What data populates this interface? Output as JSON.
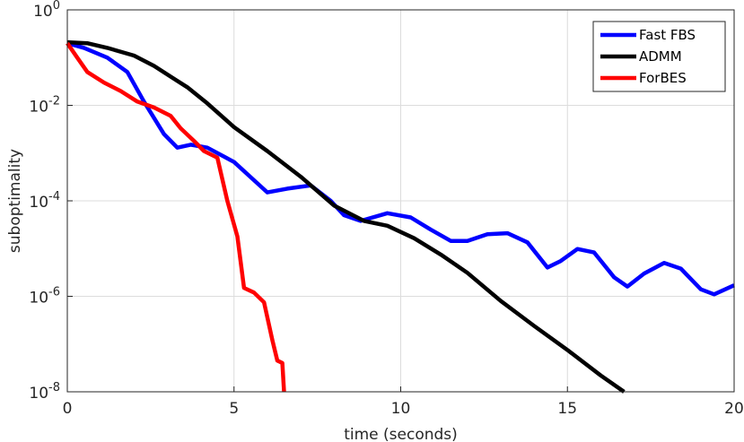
{
  "chart_data": {
    "type": "line",
    "xlabel": "time (seconds)",
    "ylabel": "suboptimality",
    "xlim": [
      0,
      20
    ],
    "ylim": [
      1e-08,
      1
    ],
    "yscale": "log",
    "grid": true,
    "legend_position": "top-right",
    "x_ticks": [
      "0",
      "5",
      "10",
      "15",
      "20"
    ],
    "y_ticks": [
      {
        "base": "10",
        "exp": "-8"
      },
      {
        "base": "10",
        "exp": "-6"
      },
      {
        "base": "10",
        "exp": "-4"
      },
      {
        "base": "10",
        "exp": "-2"
      },
      {
        "base": "10",
        "exp": "0"
      }
    ],
    "series": [
      {
        "name": "Fast FBS",
        "color": "#0000ff",
        "points": [
          [
            0,
            0.2
          ],
          [
            0.5,
            0.16
          ],
          [
            1.2,
            0.1
          ],
          [
            1.8,
            0.05
          ],
          [
            2.3,
            0.012
          ],
          [
            2.9,
            0.0025
          ],
          [
            3.3,
            0.0013
          ],
          [
            3.7,
            0.0015
          ],
          [
            4.2,
            0.0013
          ],
          [
            5.0,
            0.00065
          ],
          [
            5.6,
            0.00027
          ],
          [
            6.0,
            0.00015
          ],
          [
            6.6,
            0.00018
          ],
          [
            7.3,
            0.00021
          ],
          [
            7.9,
            0.0001
          ],
          [
            8.3,
            5e-05
          ],
          [
            8.8,
            3.8e-05
          ],
          [
            9.6,
            5.5e-05
          ],
          [
            10.3,
            4.5e-05
          ],
          [
            10.9,
            2.5e-05
          ],
          [
            11.5,
            1.45e-05
          ],
          [
            12.0,
            1.45e-05
          ],
          [
            12.6,
            2e-05
          ],
          [
            13.2,
            2.1e-05
          ],
          [
            13.8,
            1.35e-05
          ],
          [
            14.4,
            4e-06
          ],
          [
            14.8,
            5.5e-06
          ],
          [
            15.3,
            9.8e-06
          ],
          [
            15.8,
            8.3e-06
          ],
          [
            16.4,
            2.5e-06
          ],
          [
            16.8,
            1.6e-06
          ],
          [
            17.3,
            3e-06
          ],
          [
            17.9,
            5e-06
          ],
          [
            18.4,
            3.8e-06
          ],
          [
            19.0,
            1.4e-06
          ],
          [
            19.4,
            1.1e-06
          ],
          [
            20,
            1.7e-06
          ]
        ]
      },
      {
        "name": "ADMM",
        "color": "#000000",
        "points": [
          [
            0,
            0.21
          ],
          [
            0.6,
            0.2
          ],
          [
            1.2,
            0.16
          ],
          [
            2.0,
            0.11
          ],
          [
            2.6,
            0.067
          ],
          [
            3.2,
            0.036
          ],
          [
            3.6,
            0.024
          ],
          [
            4.2,
            0.011
          ],
          [
            5.0,
            0.0035
          ],
          [
            6.0,
            0.0011
          ],
          [
            7.0,
            0.00032
          ],
          [
            8.0,
            8e-05
          ],
          [
            8.9,
            3.8e-05
          ],
          [
            9.6,
            3e-05
          ],
          [
            10.4,
            1.65e-05
          ],
          [
            11.2,
            7.5e-06
          ],
          [
            12.0,
            3.1e-06
          ],
          [
            13.0,
            8e-07
          ],
          [
            14.0,
            2.4e-07
          ],
          [
            15.0,
            7.5e-08
          ],
          [
            16.0,
            2.2e-08
          ],
          [
            16.7,
            1e-08
          ]
        ]
      },
      {
        "name": "ForBES",
        "color": "#ff0000",
        "points": [
          [
            0,
            0.2
          ],
          [
            0.3,
            0.1
          ],
          [
            0.6,
            0.05
          ],
          [
            1.1,
            0.03
          ],
          [
            1.6,
            0.02
          ],
          [
            2.1,
            0.012
          ],
          [
            2.6,
            0.009
          ],
          [
            3.1,
            0.006
          ],
          [
            3.4,
            0.0033
          ],
          [
            3.8,
            0.0018
          ],
          [
            4.1,
            0.0011
          ],
          [
            4.5,
            0.0008
          ],
          [
            4.8,
            0.0001
          ],
          [
            5.1,
            1.8e-05
          ],
          [
            5.3,
            1.5e-06
          ],
          [
            5.6,
            1.2e-06
          ],
          [
            5.9,
            7.5e-07
          ],
          [
            6.15,
            1.2e-07
          ],
          [
            6.3,
            4.5e-08
          ],
          [
            6.45,
            4e-08
          ],
          [
            6.5,
            1e-08
          ]
        ]
      }
    ]
  }
}
